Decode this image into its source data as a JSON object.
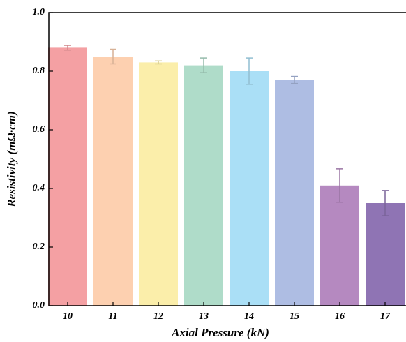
{
  "chart_data": {
    "type": "bar",
    "x_label": "Axial Pressure (kN)",
    "y_label": "Resistivity (mΩ·cm)",
    "categories": [
      "10",
      "11",
      "12",
      "13",
      "14",
      "15",
      "16",
      "17"
    ],
    "values": [
      0.88,
      0.85,
      0.83,
      0.82,
      0.8,
      0.77,
      0.41,
      0.35
    ],
    "errors": [
      0.008,
      0.025,
      0.005,
      0.025,
      0.045,
      0.012,
      0.057,
      0.043
    ],
    "colors": [
      "#f4a0a3",
      "#fdd0b0",
      "#fbeeaa",
      "#afdcc9",
      "#aadff6",
      "#aebde3",
      "#b589c0",
      "#8f74b4"
    ],
    "ylim": [
      0,
      1
    ],
    "yticks": [
      {
        "value": 0,
        "label": "0.0"
      },
      0.2,
      0.4,
      0.6,
      0.8,
      {
        "value": 1,
        "label": "1.0"
      }
    ]
  }
}
